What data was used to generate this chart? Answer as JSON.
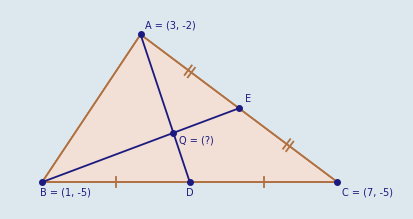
{
  "A": [
    3,
    -2
  ],
  "B": [
    1,
    -5
  ],
  "C": [
    7,
    -5
  ],
  "D": [
    4,
    -5
  ],
  "E": [
    5,
    -3.5
  ],
  "Q": [
    3.6667,
    -4.0
  ],
  "bg_color": "#dde8ee",
  "triangle_fill": "#f2dfd5",
  "triangle_edge_color": "#b07040",
  "median_color": "#1a1a80",
  "point_color": "#1a1a80",
  "text_color": "#1a1a80",
  "tick_color": "#b07040",
  "label_A": "A = (3, -2)",
  "label_B": "B = (1, -5)",
  "label_C": "C = (7, -5)",
  "label_D": "D",
  "label_E": "E",
  "label_Q": "Q = (?)",
  "xlim": [
    0.2,
    8.5
  ],
  "ylim": [
    -5.75,
    -1.3
  ],
  "figsize": [
    4.14,
    2.19
  ],
  "dpi": 100
}
